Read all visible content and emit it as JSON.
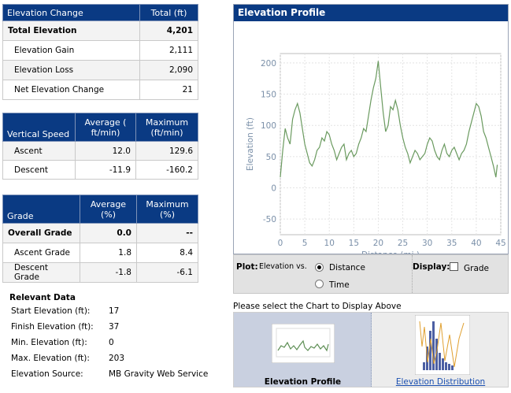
{
  "change_table": {
    "headers": [
      "Elevation Change",
      "Total (ft)"
    ],
    "rows": [
      {
        "label": "Total Elevation",
        "value": "4,201"
      },
      {
        "label": "Elevation Gain",
        "value": "2,111"
      },
      {
        "label": "Elevation Loss",
        "value": "2,090"
      },
      {
        "label": "Net Elevation Change",
        "value": "21"
      }
    ]
  },
  "speed_table": {
    "headers": [
      "Vertical Speed",
      "Average ( ft/min)",
      "Maximum (ft/min)"
    ],
    "rows": [
      {
        "label": "Ascent",
        "avg": "12.0",
        "max": "129.6"
      },
      {
        "label": "Descent",
        "avg": "-11.9",
        "max": "-160.2"
      }
    ]
  },
  "grade_table": {
    "headers": [
      "Grade",
      "Average (%)",
      "Maximum (%)"
    ],
    "rows": [
      {
        "label": "Overall Grade",
        "avg": "0.0",
        "max": "--"
      },
      {
        "label": "Ascent Grade",
        "avg": "1.8",
        "max": "8.4"
      },
      {
        "label": "Descent Grade",
        "avg": "-1.8",
        "max": "-6.1"
      }
    ]
  },
  "relevant": {
    "heading": "Relevant Data",
    "items": [
      {
        "label": "Start Elevation (ft):",
        "value": "17"
      },
      {
        "label": "Finish Elevation (ft):",
        "value": "37"
      },
      {
        "label": "Min. Elevation (ft):",
        "value": "0"
      },
      {
        "label": "Max. Elevation (ft):",
        "value": "203"
      },
      {
        "label": "Elevation Source:",
        "value": "MB Gravity Web Service"
      }
    ]
  },
  "panel_title": "Elevation Profile",
  "chart_data": {
    "type": "line",
    "xlabel": "Distance (mi )",
    "ylabel": "Elevation (ft)",
    "xlim": [
      0,
      45
    ],
    "ylim": [
      -75,
      215
    ],
    "xticks": [
      0,
      5,
      10,
      15,
      20,
      25,
      30,
      35,
      40,
      45
    ],
    "yticks": [
      -50,
      0,
      50,
      100,
      150,
      200
    ],
    "grid": true,
    "color": "#6a9a5f",
    "x": [
      0,
      0.5,
      1,
      1.5,
      2,
      2.5,
      3,
      3.5,
      4,
      4.5,
      5,
      5.5,
      6,
      6.5,
      7,
      7.5,
      8,
      8.5,
      9,
      9.5,
      10,
      10.5,
      11,
      11.5,
      12,
      12.5,
      13,
      13.5,
      14,
      14.5,
      15,
      15.5,
      16,
      16.5,
      17,
      17.5,
      18,
      18.5,
      19,
      19.5,
      20,
      20.5,
      21,
      21.5,
      22,
      22.5,
      23,
      23.5,
      24,
      24.5,
      25,
      25.5,
      26,
      26.5,
      27,
      27.5,
      28,
      28.5,
      29,
      29.5,
      30,
      30.5,
      31,
      31.5,
      32,
      32.5,
      33,
      33.5,
      34,
      34.5,
      35,
      35.5,
      36,
      36.5,
      37,
      37.5,
      38,
      38.5,
      39,
      39.5,
      40,
      40.5,
      41,
      41.5,
      42,
      42.5,
      43,
      43.5,
      44,
      44.3
    ],
    "y": [
      17,
      60,
      95,
      80,
      70,
      110,
      125,
      135,
      120,
      95,
      70,
      55,
      40,
      35,
      45,
      60,
      65,
      80,
      75,
      90,
      85,
      70,
      60,
      45,
      55,
      65,
      70,
      45,
      55,
      60,
      50,
      55,
      70,
      80,
      95,
      90,
      115,
      140,
      160,
      175,
      203,
      160,
      120,
      90,
      100,
      130,
      125,
      140,
      125,
      100,
      80,
      65,
      55,
      40,
      50,
      60,
      55,
      45,
      50,
      55,
      70,
      80,
      75,
      60,
      50,
      45,
      60,
      70,
      55,
      50,
      60,
      65,
      55,
      45,
      55,
      60,
      70,
      90,
      105,
      120,
      135,
      130,
      115,
      90,
      80,
      65,
      50,
      35,
      17,
      37
    ]
  },
  "controls": {
    "plot_label": "Plot:",
    "vs_label": "Elevation vs.",
    "opt_distance": "Distance",
    "opt_time": "Time",
    "display_label": "Display:",
    "grade_label": "Grade"
  },
  "select_note": "Please select the Chart to Display Above",
  "thumbs": {
    "profile_label": "Elevation Profile",
    "dist_label": "Elevation Distribution"
  }
}
